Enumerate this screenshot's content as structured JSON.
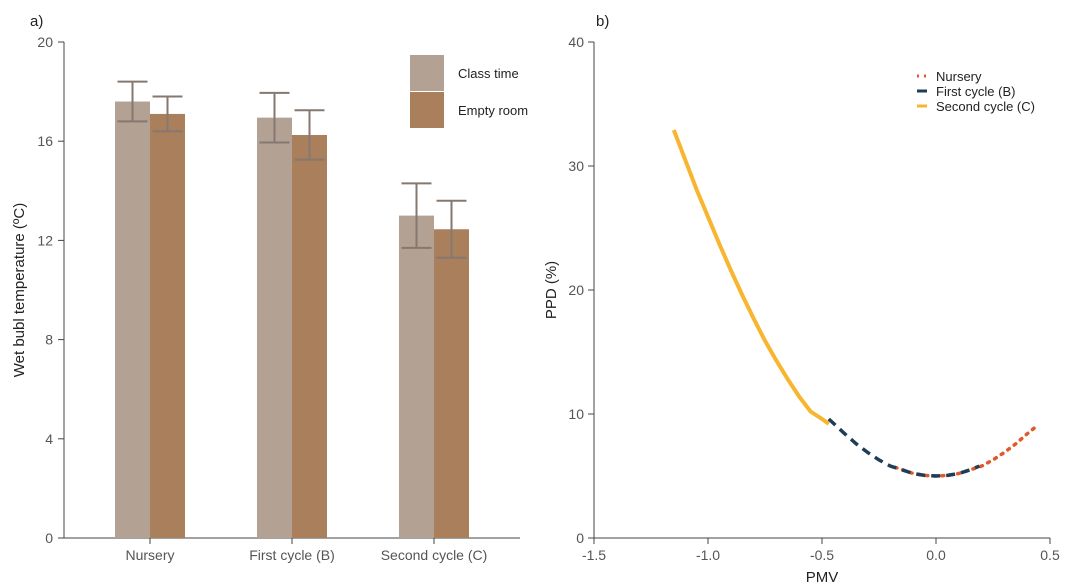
{
  "chart_data": [
    {
      "panel_label": "a)",
      "type": "bar",
      "ylabel": "Wet bubl temperature (ºC)",
      "xlabel": "",
      "ylim": [
        0,
        20
      ],
      "yticks": [
        0,
        4,
        8,
        12,
        16,
        20
      ],
      "categories": [
        "Nursery",
        "First cycle (B)",
        "Second cycle (C)"
      ],
      "series": [
        {
          "name": "Class time",
          "color": "#b3a294",
          "values": [
            17.6,
            16.95,
            13.0
          ],
          "errors": [
            0.8,
            1.0,
            1.3
          ]
        },
        {
          "name": "Empty room",
          "color": "#a97f5c",
          "values": [
            17.1,
            16.25,
            12.45
          ],
          "errors": [
            0.7,
            1.0,
            1.15
          ]
        }
      ],
      "legend_position": "top-right",
      "error_bar_color": "#857870"
    },
    {
      "panel_label": "b)",
      "type": "line",
      "xlabel": "PMV",
      "ylabel": "PPD (%)",
      "xlim": [
        -1.5,
        0.5
      ],
      "ylim": [
        0,
        40
      ],
      "xticks": [
        "-1.5",
        "-1.0",
        "-0.5",
        "0.0",
        "0.5"
      ],
      "yticks": [
        "0",
        "10",
        "20",
        "30",
        "40"
      ],
      "legend_position": "top-right",
      "series": [
        {
          "name": "Nursery",
          "color": "#e0592a",
          "style": "dotted",
          "x": [
            -0.18,
            -0.1,
            -0.05,
            0.0,
            0.05,
            0.1,
            0.15,
            0.2,
            0.25,
            0.3,
            0.35,
            0.4,
            0.44
          ],
          "y": [
            5.7,
            5.2,
            5.05,
            5.0,
            5.05,
            5.2,
            5.5,
            5.8,
            6.3,
            6.9,
            7.6,
            8.4,
            9.0
          ]
        },
        {
          "name": "First cycle (B)",
          "color": "#1e3e57",
          "style": "dashed",
          "x": [
            -0.47,
            -0.4,
            -0.35,
            -0.3,
            -0.25,
            -0.2,
            -0.15,
            -0.1,
            -0.05,
            0.0,
            0.05,
            0.1,
            0.15,
            0.19
          ],
          "y": [
            9.6,
            8.4,
            7.6,
            6.9,
            6.3,
            5.8,
            5.5,
            5.2,
            5.05,
            5.0,
            5.05,
            5.2,
            5.5,
            5.8
          ]
        },
        {
          "name": "Second cycle (C)",
          "color": "#f8b52f",
          "style": "solid",
          "x": [
            -1.15,
            -1.1,
            -1.05,
            -1.0,
            -0.95,
            -0.9,
            -0.85,
            -0.8,
            -0.75,
            -0.7,
            -0.65,
            -0.6,
            -0.55,
            -0.5,
            -0.47
          ],
          "y": [
            32.9,
            30.5,
            28.1,
            25.9,
            23.7,
            21.6,
            19.6,
            17.7,
            15.9,
            14.3,
            12.8,
            11.4,
            10.2,
            9.6,
            9.2
          ]
        }
      ]
    }
  ]
}
